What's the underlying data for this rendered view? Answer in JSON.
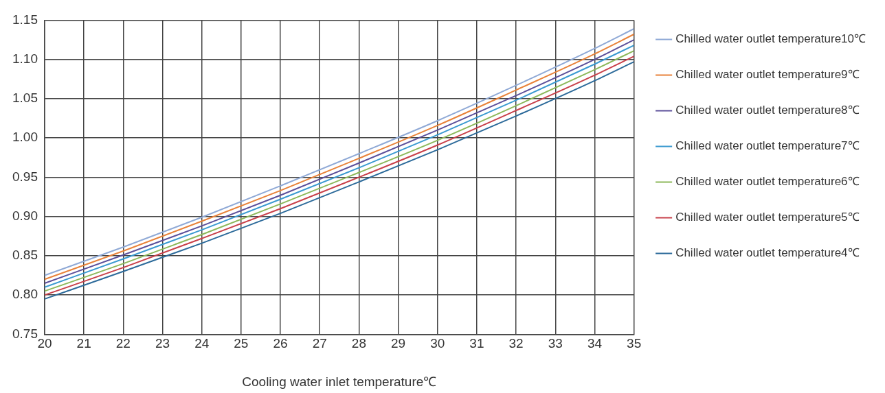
{
  "chart_data": {
    "type": "line",
    "xlabel": "Cooling water inlet temperature℃",
    "x": [
      20,
      22,
      24,
      26,
      28,
      30,
      32,
      34,
      35
    ],
    "series": [
      {
        "name": "Chilled water outlet temperature10℃",
        "color": "#8fa9d6",
        "values": [
          0.825,
          0.861,
          0.899,
          0.939,
          0.98,
          1.022,
          1.067,
          1.114,
          1.139
        ]
      },
      {
        "name": "Chilled water outlet temperature9℃",
        "color": "#e8823a",
        "values": [
          0.82,
          0.856,
          0.894,
          0.933,
          0.974,
          1.016,
          1.061,
          1.107,
          1.132
        ]
      },
      {
        "name": "Chilled water outlet temperature8℃",
        "color": "#5b4f9a",
        "values": [
          0.815,
          0.851,
          0.888,
          0.927,
          0.968,
          1.01,
          1.054,
          1.1,
          1.125
        ]
      },
      {
        "name": "Chilled water outlet temperature7℃",
        "color": "#3a9ad0",
        "values": [
          0.81,
          0.846,
          0.883,
          0.922,
          0.962,
          1.004,
          1.048,
          1.094,
          1.118
        ]
      },
      {
        "name": "Chilled water outlet temperature6℃",
        "color": "#8cb85a",
        "values": [
          0.805,
          0.84,
          0.877,
          0.916,
          0.956,
          0.997,
          1.041,
          1.087,
          1.111
        ]
      },
      {
        "name": "Chilled water outlet temperature5℃",
        "color": "#c8404a",
        "values": [
          0.8,
          0.835,
          0.872,
          0.91,
          0.95,
          0.991,
          1.035,
          1.08,
          1.104
        ]
      },
      {
        "name": "Chilled water outlet temperature4℃",
        "color": "#2c6a9a",
        "values": [
          0.795,
          0.83,
          0.866,
          0.904,
          0.944,
          0.985,
          1.028,
          1.073,
          1.097
        ]
      }
    ],
    "xlim": [
      20,
      35
    ],
    "xticks": [
      20,
      21,
      22,
      23,
      24,
      25,
      26,
      27,
      28,
      29,
      30,
      31,
      32,
      33,
      34,
      35
    ],
    "ylim": [
      0.75,
      1.15
    ],
    "yticks": [
      {
        "value": 0.75,
        "label": "0.75"
      },
      {
        "value": 0.8,
        "label": "0.80"
      },
      {
        "value": 0.85,
        "label": "0.85"
      },
      {
        "value": 0.9,
        "label": "0.90"
      },
      {
        "value": 0.95,
        "label": "0.95"
      },
      {
        "value": 1.0,
        "label": "1.00"
      },
      {
        "value": 1.05,
        "label": "1.05"
      },
      {
        "value": 1.1,
        "label": "1.10"
      },
      {
        "value": 1.15,
        "label": "1.15"
      }
    ],
    "grid": true,
    "legend": "right",
    "marker": "none",
    "line_style": "solid"
  }
}
